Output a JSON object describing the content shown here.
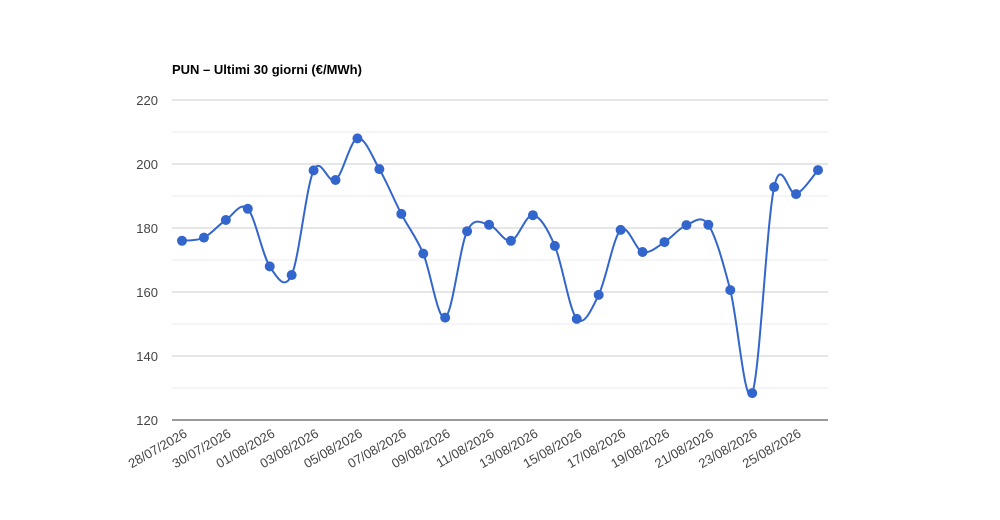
{
  "chart_data": {
    "type": "line",
    "title": "PUN – Ultimi 30 giorni (€/MWh)",
    "categories": [
      "28/07/2026",
      null,
      "30/07/2026",
      null,
      "01/08/2026",
      null,
      "03/08/2026",
      null,
      "05/08/2026",
      null,
      "07/08/2026",
      null,
      "09/08/2026",
      null,
      "11/08/2026",
      null,
      "13/08/2026",
      null,
      "15/08/2026",
      null,
      "17/08/2026",
      null,
      "19/08/2026",
      null,
      "21/08/2026",
      null,
      "23/08/2026",
      null,
      "25/08/2026",
      null
    ],
    "values": [
      176,
      177,
      182.5,
      186,
      168,
      165.3,
      198,
      195,
      208,
      198.4,
      184.4,
      172,
      152,
      179,
      181,
      176,
      184,
      174.4,
      151.6,
      159.1,
      179.4,
      172.5,
      175.6,
      180.9,
      181,
      160.6,
      128.4,
      192.8,
      190.6,
      198.1
    ],
    "color": "#3366cc",
    "ylim": [
      120,
      220
    ],
    "yticks": [
      120,
      140,
      160,
      180,
      200,
      220
    ],
    "grid": true
  }
}
